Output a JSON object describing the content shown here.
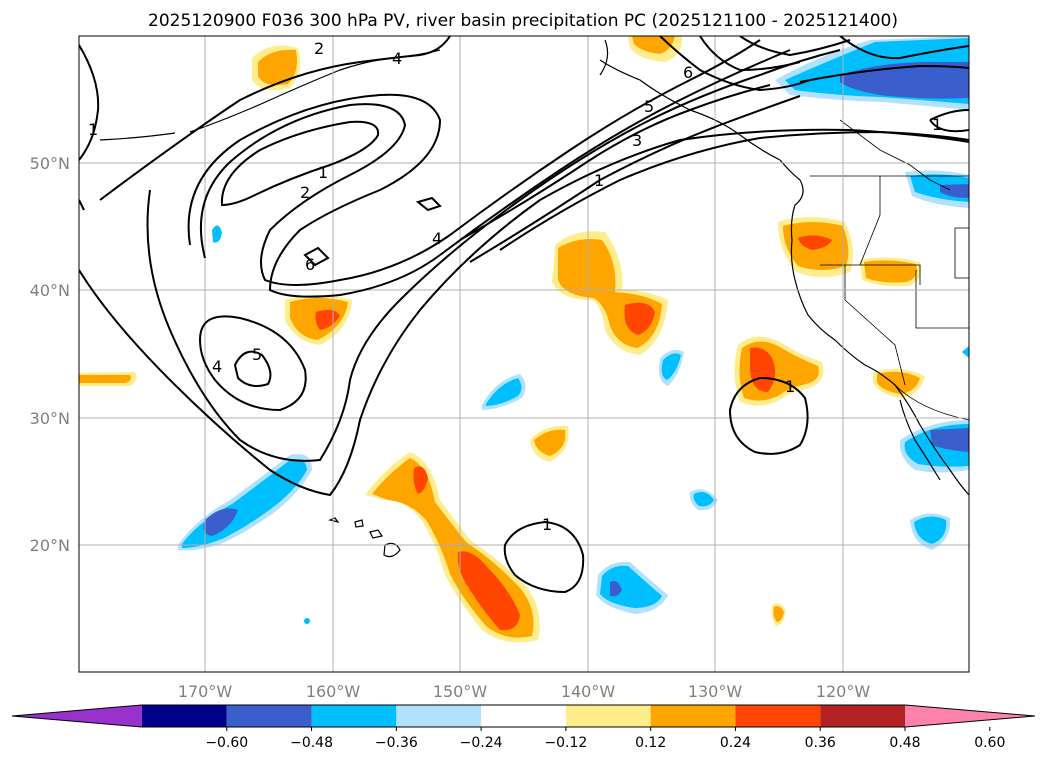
{
  "title": "2025120900 F036 300 hPa PV, river basin precipitation PC (2025121100 - 2025121400)",
  "latitude_labels": [
    "50°N",
    "40°N",
    "30°N",
    "20°N"
  ],
  "longitude_labels": [
    "170°W",
    "160°W",
    "150°W",
    "140°W",
    "130°W",
    "120°W"
  ],
  "contour_labels": [
    "1",
    "2",
    "4",
    "6",
    "5",
    "4",
    "1",
    "2",
    "3",
    "4",
    "5",
    "6",
    "1",
    "1",
    "1",
    "1"
  ],
  "colorbar": {
    "ticks": [
      "−0.60",
      "−0.48",
      "−0.36",
      "−0.24",
      "−0.12",
      "0.12",
      "0.24",
      "0.36",
      "0.48",
      "0.60"
    ],
    "colors": [
      "#9932cc",
      "#00008b",
      "#3a5fcd",
      "#00bfff",
      "#b0e2ff",
      "#ffffff",
      "#ffec8b",
      "#ffa500",
      "#ff4500",
      "#b22222",
      "#ff82ab"
    ]
  },
  "colors": {
    "neg_light": "#b0e2ff",
    "neg_mid": "#00bfff",
    "neg_strong": "#3a5fcd",
    "pos_light": "#ffec8b",
    "pos_mid": "#ffa500",
    "pos_strong": "#ff4500"
  }
}
